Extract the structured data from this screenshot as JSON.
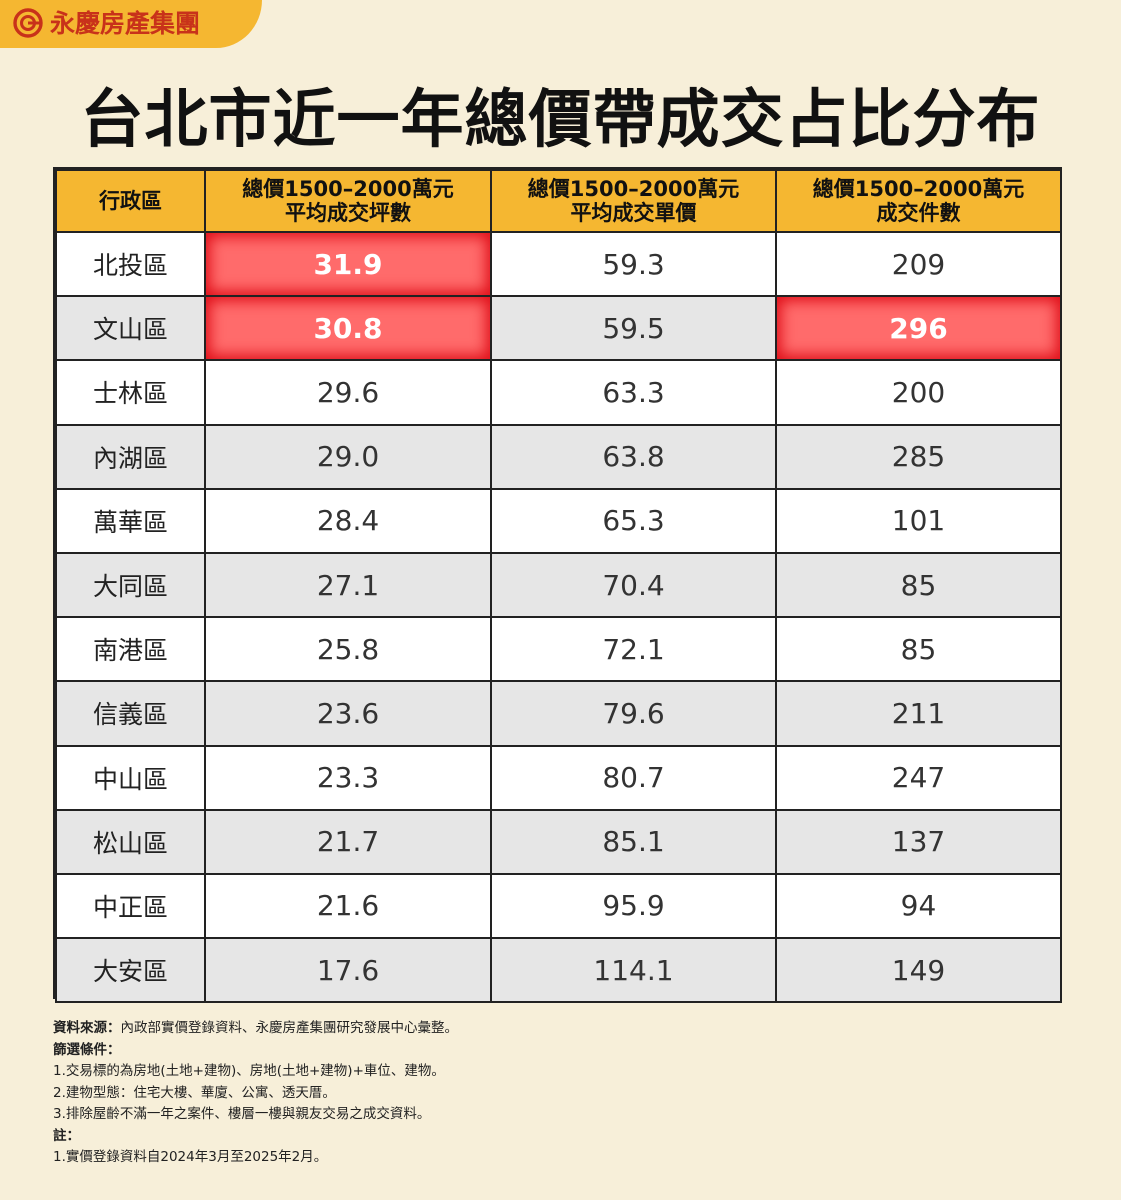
{
  "brand": {
    "name": "永慶房產集團",
    "logo_icon": "yungching-logo-icon",
    "accent_color": "#f5b731",
    "brand_color": "#c8321a"
  },
  "title": "台北市近一年總價帶成交占比分布",
  "table": {
    "headers": [
      {
        "line1": "行政區",
        "line2": ""
      },
      {
        "line1": "總價1500–2000萬元",
        "line2": "平均成交坪數"
      },
      {
        "line1": "總價1500–2000萬元",
        "line2": "平均成交單價"
      },
      {
        "line1": "總價1500–2000萬元",
        "line2": "成交件數"
      }
    ],
    "highlight_color": "#ff4d4d",
    "rows": [
      {
        "district": "北投區",
        "avg_area": "31.9",
        "avg_price": "59.3",
        "count": "209",
        "hl": [
          1
        ]
      },
      {
        "district": "文山區",
        "avg_area": "30.8",
        "avg_price": "59.5",
        "count": "296",
        "hl": [
          1,
          3
        ]
      },
      {
        "district": "士林區",
        "avg_area": "29.6",
        "avg_price": "63.3",
        "count": "200",
        "hl": []
      },
      {
        "district": "內湖區",
        "avg_area": "29.0",
        "avg_price": "63.8",
        "count": "285",
        "hl": []
      },
      {
        "district": "萬華區",
        "avg_area": "28.4",
        "avg_price": "65.3",
        "count": "101",
        "hl": []
      },
      {
        "district": "大同區",
        "avg_area": "27.1",
        "avg_price": "70.4",
        "count": "85",
        "hl": []
      },
      {
        "district": "南港區",
        "avg_area": "25.8",
        "avg_price": "72.1",
        "count": "85",
        "hl": []
      },
      {
        "district": "信義區",
        "avg_area": "23.6",
        "avg_price": "79.6",
        "count": "211",
        "hl": []
      },
      {
        "district": "中山區",
        "avg_area": "23.3",
        "avg_price": "80.7",
        "count": "247",
        "hl": []
      },
      {
        "district": "松山區",
        "avg_area": "21.7",
        "avg_price": "85.1",
        "count": "137",
        "hl": []
      },
      {
        "district": "中正區",
        "avg_area": "21.6",
        "avg_price": "95.9",
        "count": "94",
        "hl": []
      },
      {
        "district": "大安區",
        "avg_area": "17.6",
        "avg_price": "114.1",
        "count": "149",
        "hl": []
      }
    ]
  },
  "notes": {
    "source_label": "資料來源：",
    "source_text": "內政部實價登錄資料、永慶房產集團研究發展中心彙整。",
    "filter_label": "篩選條件：",
    "filters": [
      "1.交易標的為房地(土地+建物)、房地(土地+建物)+車位、建物。",
      "2.建物型態：住宅大樓、華廈、公寓、透天厝。",
      "3.排除屋齡不滿一年之案件、樓層一樓與親友交易之成交資料。"
    ],
    "remark_label": "註：",
    "remarks": [
      "1.實價登錄資料自2024年3月至2025年2月。"
    ]
  }
}
